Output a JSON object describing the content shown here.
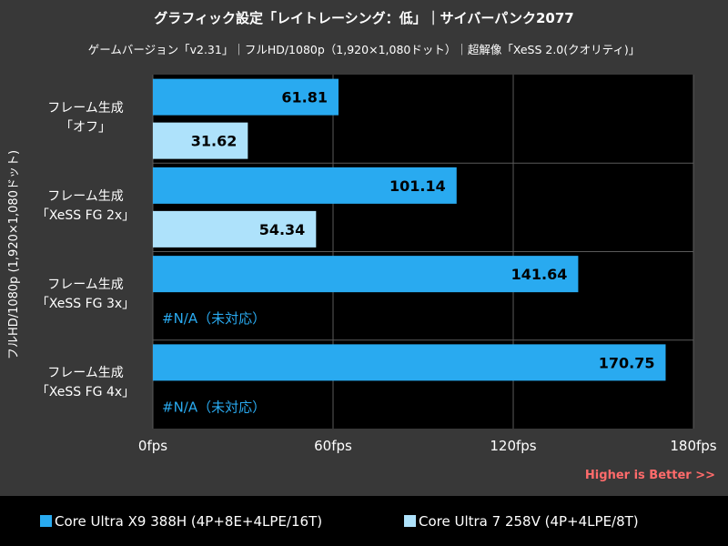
{
  "title": "グラフィック設定「レイトレーシング：低」｜サイバーパンク2077",
  "subtitle": "ゲームバージョン「v2.31」｜フルHD/1080p（1,920×1,080ドット）｜超解像「XeSS 2.0(クオリティ)」",
  "higher_is_better": "Higher is Better >>",
  "colors": {
    "background": "#383838",
    "plot_background": "#000000",
    "gridline": "#5a5a5a",
    "series1": "#29aaf0",
    "series2": "#aee2fb",
    "bar_label": "#000000",
    "na_label": "#29aaf0",
    "higher_text": "#ff6b6b"
  },
  "chart_data": {
    "type": "bar",
    "orientation": "horizontal",
    "title": "グラフィック設定「レイトレーシング：低」｜サイバーパンク2077",
    "ylabel": "フルHD/1080p (1,920×1,080ドット)",
    "xlabel": "",
    "xlim": [
      0,
      180
    ],
    "xticks": [
      0,
      60,
      120,
      180
    ],
    "xtick_labels": [
      "0fps",
      "60fps",
      "120fps",
      "180fps"
    ],
    "grid": true,
    "legend_position": "bottom",
    "categories": [
      "フレーム生成\n「オフ」",
      "フレーム生成\n「XeSS FG 2x」",
      "フレーム生成\n「XeSS FG 3x」",
      "フレーム生成\n「XeSS FG 4x」"
    ],
    "series": [
      {
        "name": "Core Ultra X9 388H (4P+8E+4LPE/16T)",
        "color": "#29aaf0",
        "values": [
          61.81,
          101.14,
          141.64,
          170.75
        ],
        "labels": [
          "61.81",
          "101.14",
          "141.64",
          "170.75"
        ]
      },
      {
        "name": "Core Ultra 7 258V (4P+4LPE/8T)",
        "color": "#aee2fb",
        "values": [
          31.62,
          54.34,
          null,
          null
        ],
        "labels": [
          "31.62",
          "54.34",
          "#N/A（未対応）",
          "#N/A（未対応）"
        ]
      }
    ]
  }
}
